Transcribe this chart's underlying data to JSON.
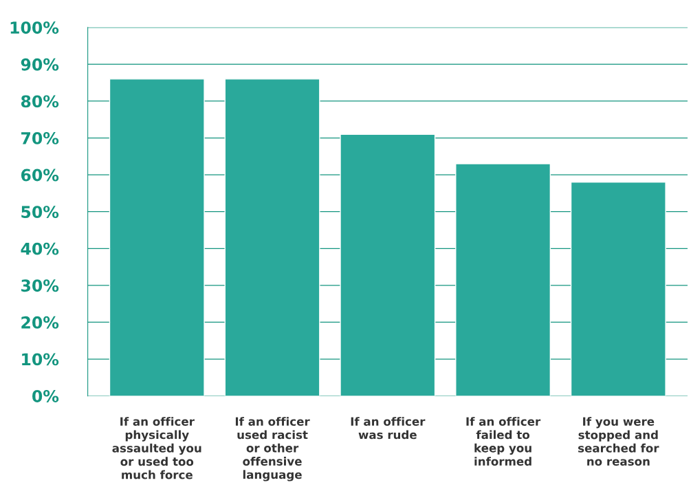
{
  "chart_data": {
    "type": "bar",
    "categories": [
      "If an officer\nphysically\nassaulted you\nor used too\nmuch force",
      "If an officer\nused racist\nor other\noffensive\nlanguage",
      "If an officer\nwas rude",
      "If an officer\nfailed to\nkeep you\ninformed",
      "If you were\nstopped and\nsearched for\nno reason"
    ],
    "values": [
      86,
      86,
      71,
      63,
      58
    ],
    "color": "#2aa99b",
    "ylim": [
      0,
      100
    ],
    "yticks": [
      {
        "value": 0,
        "label": "0%"
      },
      {
        "value": 10,
        "label": "10%"
      },
      {
        "value": 20,
        "label": "20%"
      },
      {
        "value": 30,
        "label": "30%"
      },
      {
        "value": 40,
        "label": "40%"
      },
      {
        "value": 50,
        "label": "50%"
      },
      {
        "value": 60,
        "label": "60%"
      },
      {
        "value": 70,
        "label": "70%"
      },
      {
        "value": 80,
        "label": "80%"
      },
      {
        "value": 90,
        "label": "90%"
      },
      {
        "value": 100,
        "label": "100%"
      }
    ],
    "grid": "y"
  }
}
